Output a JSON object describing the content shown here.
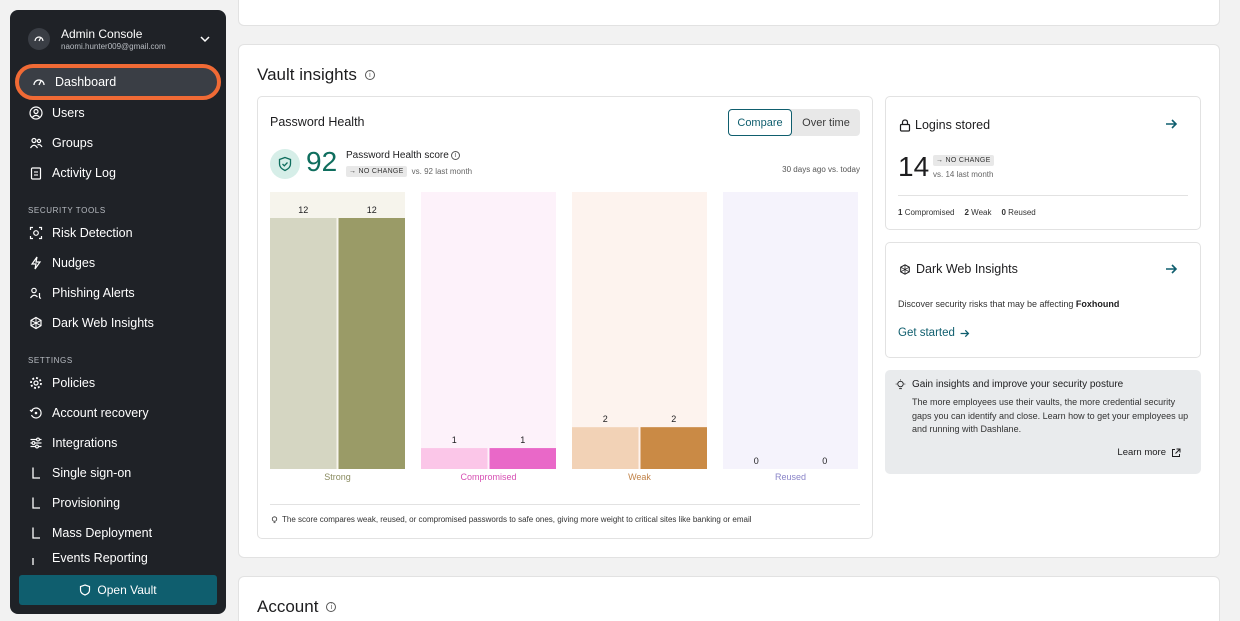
{
  "sidebar": {
    "account": {
      "title": "Admin Console",
      "email": "naomi.hunter009@gmail.com"
    },
    "items": [
      {
        "label": "Dashboard",
        "icon": "gauge-icon"
      },
      {
        "label": "Users",
        "icon": "user-circle-icon"
      },
      {
        "label": "Groups",
        "icon": "users-group-icon"
      },
      {
        "label": "Activity Log",
        "icon": "clipboard-icon"
      }
    ],
    "security_label": "SECURITY TOOLS",
    "security_items": [
      {
        "label": "Risk Detection",
        "icon": "risk-scan-icon"
      },
      {
        "label": "Nudges",
        "icon": "lightning-icon"
      },
      {
        "label": "Phishing Alerts",
        "icon": "phishing-icon"
      },
      {
        "label": "Dark Web Insights",
        "icon": "dark-web-icon"
      }
    ],
    "settings_label": "SETTINGS",
    "settings_items": [
      {
        "label": "Policies",
        "icon": "gear-icon"
      },
      {
        "label": "Account recovery",
        "icon": "recovery-icon"
      },
      {
        "label": "Integrations",
        "icon": "sliders-icon"
      },
      {
        "label": "Single sign-on",
        "icon": "sub-item-icon"
      },
      {
        "label": "Provisioning",
        "icon": "sub-item-icon"
      },
      {
        "label": "Mass Deployment",
        "icon": "sub-item-icon"
      },
      {
        "label": "Events Reporting",
        "icon": "sub-item-icon"
      }
    ],
    "open_vault": "Open Vault"
  },
  "vault": {
    "title": "Vault insights",
    "password_health": {
      "title": "Password Health",
      "toggle": {
        "compare": "Compare",
        "over_time": "Over time"
      },
      "score": "92",
      "score_label": "Password Health score",
      "no_change": "NO CHANGE",
      "vs_text": "vs. 92 last month",
      "period": "30 days ago vs. today",
      "footnote": "The score compares weak, reused, or compromised passwords to safe ones, giving more weight to critical sites like banking or email"
    },
    "logins": {
      "title": "Logins stored",
      "count": "14",
      "no_change": "NO CHANGE",
      "vs_text": "vs. 14 last month",
      "stats": [
        {
          "value": "1",
          "label": "Compromised"
        },
        {
          "value": "2",
          "label": "Weak"
        },
        {
          "value": "0",
          "label": "Reused"
        }
      ]
    },
    "dark_web": {
      "title": "Dark Web Insights",
      "desc": "Discover security risks that may be affecting",
      "company": "Foxhound",
      "cta": "Get started"
    },
    "insights": {
      "title": "Gain insights and improve your security posture",
      "body": "The more employees use their vaults, the more credential security gaps you can identify and close. Learn how to get your employees up and running with Dashlane.",
      "link": "Learn more"
    }
  },
  "account": {
    "title": "Account"
  },
  "chart_data": {
    "type": "bar",
    "categories": [
      "Strong",
      "Compromised",
      "Weak",
      "Reused"
    ],
    "series": [
      {
        "values": [
          12,
          1,
          2,
          0
        ]
      },
      {
        "values": [
          12,
          1,
          2,
          0
        ]
      }
    ],
    "ylim": [
      0,
      12
    ],
    "colors": {
      "bg": [
        "#f6f4ec",
        "#fdf2fa",
        "#fdf3ee",
        "#f5f3fc"
      ],
      "prev": [
        "#d5d6c2",
        "#fbc6e8",
        "#f2d2b6",
        "#dcd6f4"
      ],
      "now": [
        "#9a9b67",
        "#e968c8",
        "#ca8a45",
        "#c9c0ef"
      ],
      "label": [
        "#8a8b60",
        "#d64fb3",
        "#c08248",
        "#8a84c8"
      ]
    }
  }
}
